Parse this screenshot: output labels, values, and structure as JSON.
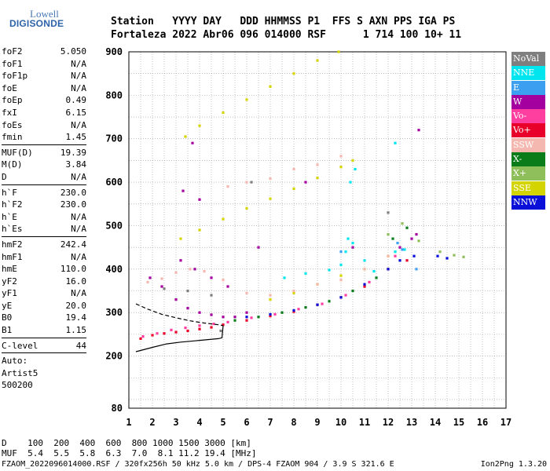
{
  "logo": {
    "line1": "Lowell",
    "line2": "DIGISONDE"
  },
  "header": {
    "line1": "Station   YYYY DAY   DDD HHMMSS P1  FFS S AXN PPS IGA PS",
    "line2": "Fortaleza 2022 Abr06 096 014000 RSF      1 714 100 10+ 11"
  },
  "params": {
    "group1": [
      {
        "label": "foF2",
        "value": "5.050"
      },
      {
        "label": "foF1",
        "value": "N/A"
      },
      {
        "label": "foF1p",
        "value": "N/A"
      },
      {
        "label": "foE",
        "value": "N/A"
      },
      {
        "label": "foEp",
        "value": "0.49"
      },
      {
        "label": "fxI",
        "value": "6.15"
      },
      {
        "label": "foEs",
        "value": "N/A"
      },
      {
        "label": "fmin",
        "value": "1.45"
      }
    ],
    "group2": [
      {
        "label": "MUF(D)",
        "value": "19.39"
      },
      {
        "label": "M(D)",
        "value": "3.84"
      },
      {
        "label": "D",
        "value": "N/A"
      }
    ],
    "group3": [
      {
        "label": "h`F",
        "value": "230.0"
      },
      {
        "label": "h`F2",
        "value": "230.0"
      },
      {
        "label": "h`E",
        "value": "N/A"
      },
      {
        "label": "h`Es",
        "value": "N/A"
      }
    ],
    "group4": [
      {
        "label": "hmF2",
        "value": "242.4"
      },
      {
        "label": "hmF1",
        "value": "N/A"
      },
      {
        "label": "hmE",
        "value": "110.0"
      },
      {
        "label": "yF2",
        "value": "16.0"
      },
      {
        "label": "yF1",
        "value": "N/A"
      },
      {
        "label": "yE",
        "value": "20.0"
      },
      {
        "label": "B0",
        "value": "19.4"
      },
      {
        "label": "B1",
        "value": "1.15"
      }
    ],
    "group5": [
      {
        "label": "C-level",
        "value": "44"
      }
    ],
    "auto": [
      "Auto:",
      "Artist5",
      "500200"
    ]
  },
  "legend": [
    {
      "label": "NoVal",
      "color": "#7f7f7f"
    },
    {
      "label": "NNE",
      "color": "#00e5ee"
    },
    {
      "label": "E",
      "color": "#3c9ff0"
    },
    {
      "label": "W",
      "color": "#a3009f"
    },
    {
      "label": "Vo-",
      "color": "#ff3fa0"
    },
    {
      "label": "Vo+",
      "color": "#e8002a"
    },
    {
      "label": "SSW",
      "color": "#f5b8b0"
    },
    {
      "label": "X-",
      "color": "#0a7d1a"
    },
    {
      "label": "X+",
      "color": "#8fbf5a"
    },
    {
      "label": "SSE",
      "color": "#d4d400"
    },
    {
      "label": "NNW",
      "color": "#0a10d8"
    }
  ],
  "footer": {
    "line1": "D    100  200  400  600  800 1000 1500 3000 [km]",
    "line2": "MUF  5.4  5.5  5.8  6.3  7.0  8.1 11.2 19.4 [MHz]",
    "line3": "FZAOM_2022096014000.RSF / 320fx256h 50 kHz 5.0 km / DPS-4 FZAOM 904 / 3.9 S 321.6 E",
    "line4": "Ion2Png 1.3.20"
  },
  "chart_data": {
    "type": "scatter",
    "xlim": [
      1,
      17
    ],
    "ylim": [
      80,
      900
    ],
    "x_ticks": [
      1,
      2,
      3,
      4,
      5,
      6,
      7,
      8,
      9,
      10,
      11,
      12,
      13,
      14,
      15,
      16,
      17
    ],
    "y_ticks": [
      80,
      200,
      300,
      400,
      500,
      600,
      700,
      800,
      900
    ],
    "grid": true,
    "legend_position": "right",
    "trace": [
      [
        1.3,
        210
      ],
      [
        2.0,
        220
      ],
      [
        2.6,
        228
      ],
      [
        3.2,
        232
      ],
      [
        3.8,
        235
      ],
      [
        4.4,
        238
      ],
      [
        4.8,
        240
      ],
      [
        4.95,
        242
      ],
      [
        5.0,
        270
      ]
    ],
    "dashed_trace": [
      [
        1.3,
        320
      ],
      [
        1.8,
        308
      ],
      [
        2.4,
        296
      ],
      [
        3.0,
        288
      ],
      [
        3.6,
        281
      ],
      [
        4.2,
        276
      ],
      [
        4.8,
        272
      ],
      [
        5.0,
        270
      ]
    ],
    "series": [
      {
        "name": "SSE",
        "points": [
          [
            3.2,
            470
          ],
          [
            4.0,
            490
          ],
          [
            5.0,
            515
          ],
          [
            6.0,
            540
          ],
          [
            7.0,
            562
          ],
          [
            8.0,
            585
          ],
          [
            9.0,
            610
          ],
          [
            10.0,
            635
          ],
          [
            10.5,
            650
          ],
          [
            3.4,
            705
          ],
          [
            4.0,
            730
          ],
          [
            5.0,
            760
          ],
          [
            6.0,
            790
          ],
          [
            7.0,
            820
          ],
          [
            8.0,
            850
          ],
          [
            9.0,
            880
          ],
          [
            9.9,
            900
          ],
          [
            7.0,
            330
          ],
          [
            8.0,
            345
          ],
          [
            9.0,
            365
          ],
          [
            10.0,
            385
          ],
          [
            11.0,
            400
          ],
          [
            12.0,
            430
          ]
        ]
      },
      {
        "name": "SSW",
        "points": [
          [
            1.8,
            370
          ],
          [
            2.4,
            378
          ],
          [
            3.0,
            392
          ],
          [
            3.6,
            400
          ],
          [
            4.2,
            395
          ],
          [
            5.0,
            375
          ],
          [
            6.0,
            345
          ],
          [
            7.0,
            340
          ],
          [
            8.0,
            350
          ],
          [
            9.0,
            365
          ],
          [
            10.0,
            375
          ],
          [
            11.0,
            400
          ],
          [
            12.0,
            430
          ],
          [
            5.2,
            590
          ],
          [
            6.0,
            600
          ],
          [
            7.0,
            608
          ],
          [
            8.0,
            630
          ],
          [
            9.0,
            640
          ],
          [
            10.0,
            660
          ]
        ]
      },
      {
        "name": "W",
        "points": [
          [
            1.9,
            380
          ],
          [
            2.4,
            360
          ],
          [
            3.0,
            330
          ],
          [
            3.5,
            310
          ],
          [
            4.0,
            300
          ],
          [
            4.5,
            295
          ],
          [
            5.0,
            290
          ],
          [
            5.5,
            290
          ],
          [
            6.0,
            300
          ],
          [
            3.2,
            420
          ],
          [
            3.8,
            400
          ],
          [
            4.5,
            380
          ],
          [
            5.2,
            360
          ],
          [
            3.3,
            580
          ],
          [
            4.0,
            560
          ],
          [
            3.7,
            690
          ],
          [
            12.5,
            450
          ],
          [
            13.0,
            470
          ],
          [
            13.2,
            480
          ],
          [
            13.3,
            720
          ],
          [
            10.5,
            450
          ],
          [
            6.5,
            450
          ],
          [
            8.5,
            600
          ]
        ]
      },
      {
        "name": "Vo+",
        "points": [
          [
            1.5,
            240
          ],
          [
            2.0,
            248
          ],
          [
            2.5,
            252
          ],
          [
            3.0,
            255
          ],
          [
            3.5,
            258
          ],
          [
            4.0,
            262
          ],
          [
            4.5,
            266
          ],
          [
            5.0,
            272
          ],
          [
            6.0,
            282
          ],
          [
            7.0,
            292
          ],
          [
            8.0,
            302
          ],
          [
            9.0,
            318
          ],
          [
            10.0,
            335
          ],
          [
            11.0,
            360
          ],
          [
            12.0,
            400
          ],
          [
            12.8,
            420
          ]
        ]
      },
      {
        "name": "Vo-",
        "points": [
          [
            1.6,
            245
          ],
          [
            2.2,
            252
          ],
          [
            2.8,
            260
          ],
          [
            3.4,
            265
          ],
          [
            4.0,
            270
          ],
          [
            4.6,
            274
          ],
          [
            5.2,
            278
          ],
          [
            6.2,
            288
          ],
          [
            7.2,
            296
          ],
          [
            8.2,
            308
          ],
          [
            9.2,
            320
          ],
          [
            10.2,
            340
          ],
          [
            11.2,
            370
          ],
          [
            12.3,
            430
          ]
        ]
      },
      {
        "name": "NNE",
        "points": [
          [
            7.6,
            380
          ],
          [
            8.5,
            390
          ],
          [
            9.5,
            398
          ],
          [
            10.0,
            410
          ],
          [
            10.2,
            440
          ],
          [
            10.5,
            460
          ],
          [
            10.3,
            470
          ],
          [
            11.0,
            420
          ],
          [
            11.4,
            395
          ],
          [
            12.3,
            440
          ],
          [
            12.7,
            445
          ],
          [
            10.4,
            600
          ],
          [
            10.6,
            630
          ],
          [
            12.3,
            690
          ]
        ]
      },
      {
        "name": "E",
        "points": [
          [
            10.0,
            440
          ],
          [
            12.4,
            460
          ],
          [
            12.6,
            445
          ],
          [
            13.2,
            400
          ]
        ]
      },
      {
        "name": "NNW",
        "points": [
          [
            6.0,
            290
          ],
          [
            7.0,
            296
          ],
          [
            8.0,
            305
          ],
          [
            9.0,
            318
          ],
          [
            10.0,
            335
          ],
          [
            11.0,
            365
          ],
          [
            12.0,
            400
          ],
          [
            12.5,
            420
          ],
          [
            13.1,
            430
          ],
          [
            14.1,
            430
          ],
          [
            14.5,
            425
          ]
        ]
      },
      {
        "name": "X-",
        "points": [
          [
            5.5,
            282
          ],
          [
            6.5,
            290
          ],
          [
            7.5,
            300
          ],
          [
            8.5,
            312
          ],
          [
            9.5,
            326
          ],
          [
            10.5,
            350
          ],
          [
            11.5,
            380
          ],
          [
            12.2,
            470
          ],
          [
            12.8,
            495
          ]
        ]
      },
      {
        "name": "X+",
        "points": [
          [
            12.0,
            480
          ],
          [
            12.6,
            505
          ],
          [
            13.3,
            465
          ],
          [
            14.2,
            440
          ],
          [
            14.8,
            432
          ],
          [
            15.2,
            428
          ]
        ]
      },
      {
        "name": "NoVal",
        "points": [
          [
            2.5,
            355
          ],
          [
            3.5,
            350
          ],
          [
            4.5,
            340
          ],
          [
            4.9,
            258
          ],
          [
            6.2,
            600
          ],
          [
            12.0,
            530
          ]
        ]
      }
    ]
  }
}
